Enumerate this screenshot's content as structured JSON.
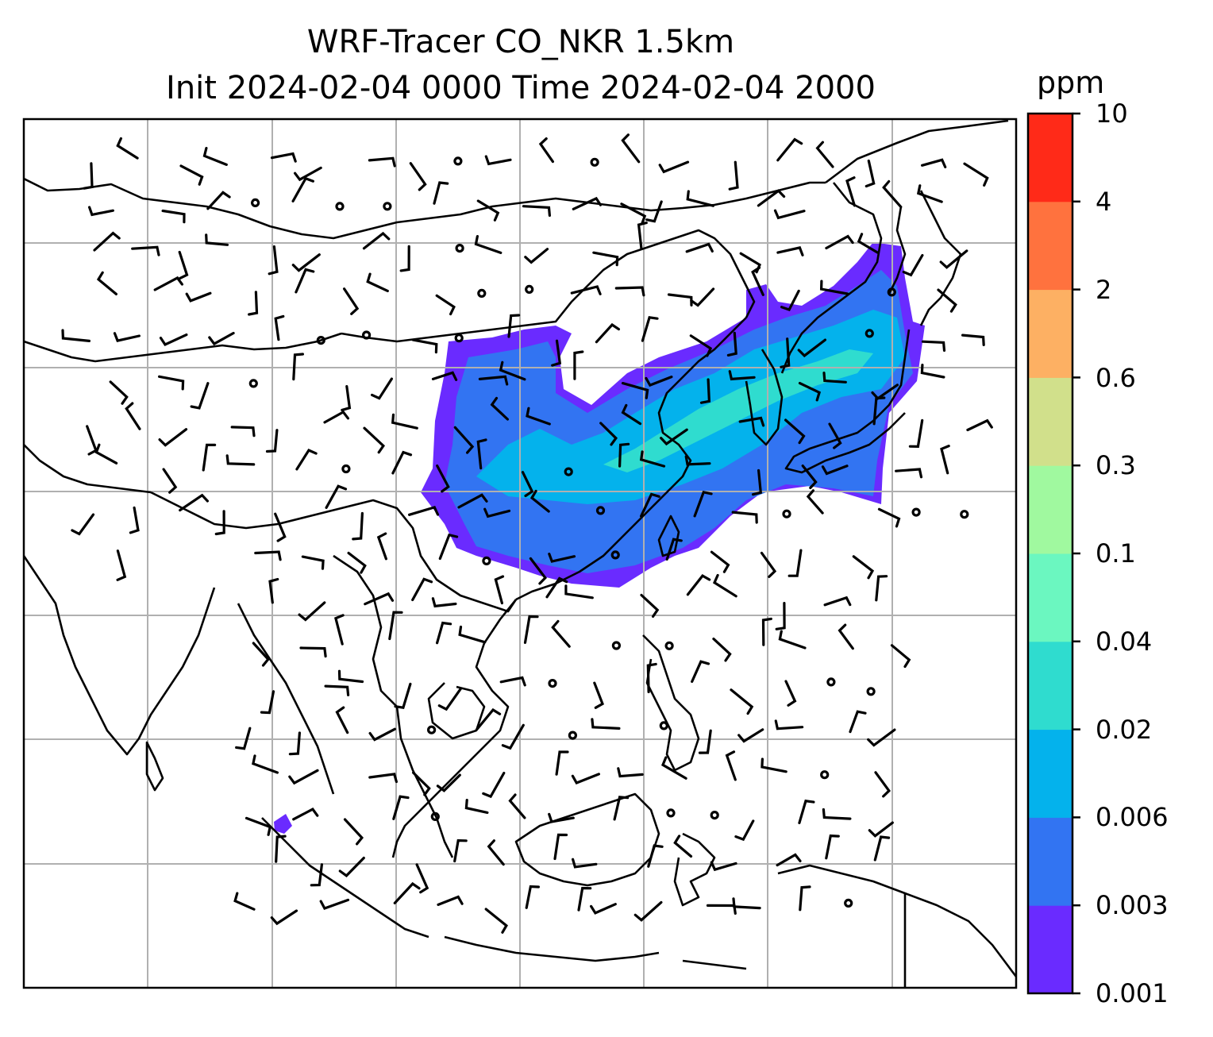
{
  "figure": {
    "title_line1": "WRF-Tracer CO_NKR 1.5km",
    "title_line2": "Init 2024-02-04 0000 Time 2024-02-04 2000"
  },
  "colorbar": {
    "unit": "ppm",
    "levels": [
      "0.001",
      "0.003",
      "0.006",
      "0.02",
      "0.04",
      "0.1",
      "0.3",
      "0.6",
      "2",
      "4",
      "10"
    ],
    "colors": [
      "#6a2bff",
      "#3274f2",
      "#04b2ec",
      "#2fdccf",
      "#6bf7c0",
      "#a0f99f",
      "#d1e08b",
      "#fdb063",
      "#ff723e",
      "#ff2a18"
    ]
  },
  "map": {
    "gridlines": true,
    "plume_colors": {
      "edge": "#6a2bff",
      "body": "#3274f2",
      "mid": "#04b2ec",
      "core": "#2fdccf"
    },
    "wind_barbs": true
  }
}
